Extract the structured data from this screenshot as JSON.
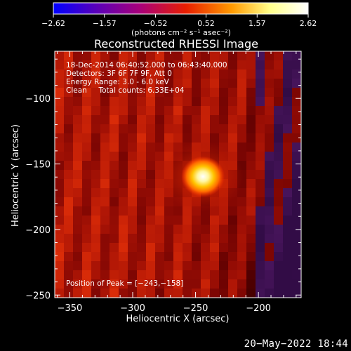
{
  "chart_data": {
    "type": "heatmap",
    "title": "Reconstructed RHESSI Image",
    "xlabel": "Heliocentric X (arcsec)",
    "ylabel": "Heliocentric Y (arcsec)",
    "xlim": [
      -362,
      -166
    ],
    "ylim": [
      -252,
      -64
    ],
    "x_ticks": [
      -350,
      -300,
      -250,
      -200
    ],
    "x_tick_labels": [
      "−350",
      "−300",
      "−250",
      "−200"
    ],
    "y_ticks": [
      -250,
      -200,
      -150,
      -100
    ],
    "y_tick_labels": [
      "−250",
      "−200",
      "−150",
      "−100"
    ],
    "colorbar": {
      "range": [
        -2.62,
        2.62
      ],
      "ticks": [
        -2.62,
        -1.57,
        -0.52,
        0.52,
        1.57,
        2.62
      ],
      "tick_labels": [
        "−2.62",
        "−1.57",
        "−0.52",
        "0.52",
        "1.57",
        "2.62"
      ],
      "unit_label": "(photons cm⁻² s⁻¹ asec⁻²)",
      "colormap": [
        "#0000ff",
        "#5a00b8",
        "#a8007a",
        "#e81e00",
        "#ff9a00",
        "#ffff8a",
        "#ffffff"
      ]
    },
    "annotations": [
      "18-Dec-2014 06:40:52.000 to 06:43:40.000",
      "Detectors: 3F 6F 7F 9F, Att 0",
      "Energy Range: 3.0 - 6.0 keV",
      "Clean     Total counts: 6.33E+04"
    ],
    "peak_label": "Position of Peak = [−243,−158]",
    "peak": {
      "x": -243,
      "y": -158,
      "value": 2.62
    },
    "grid": false
  },
  "footer": {
    "date": "20−May−2022 18:44"
  }
}
